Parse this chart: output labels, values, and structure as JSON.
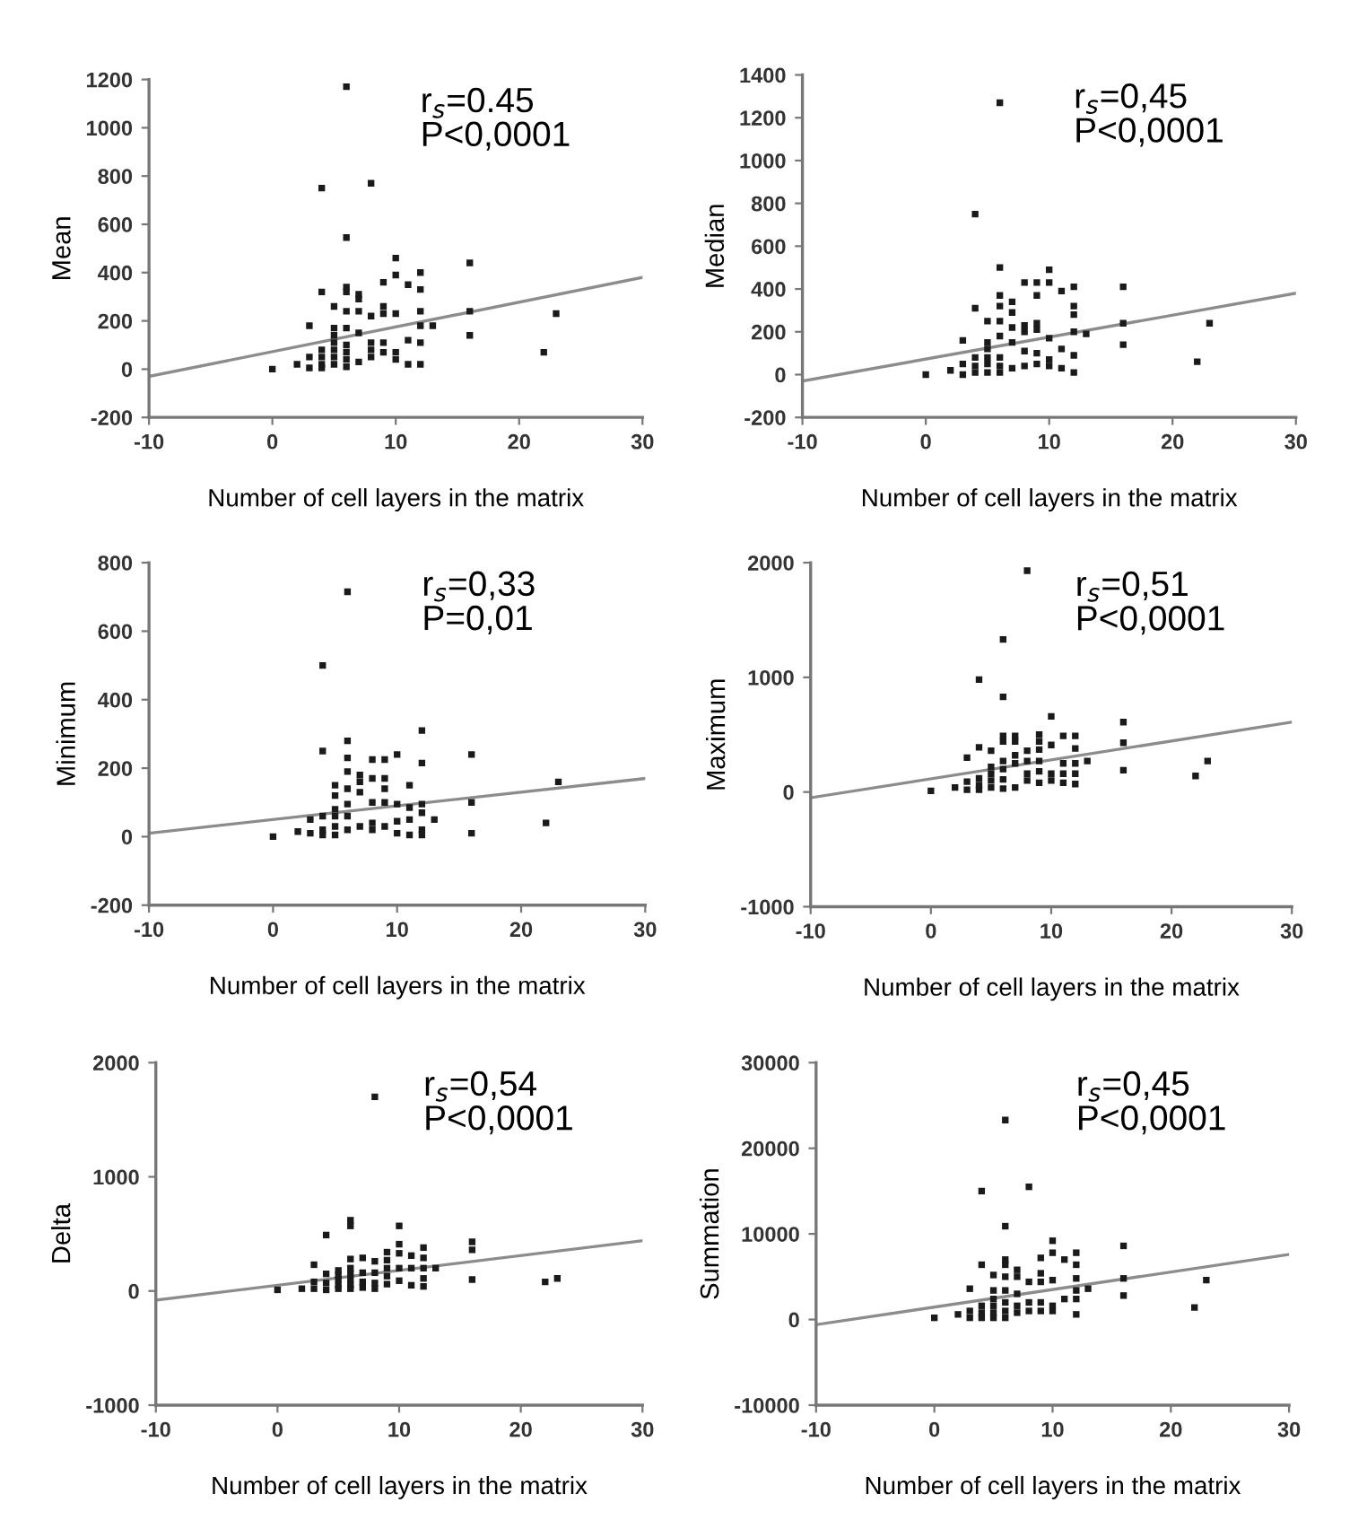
{
  "chart_data": [
    {
      "type": "scatter",
      "xlabel": "Number of cell layers in the matrix",
      "ylabel": "Mean",
      "xlim": [
        -10,
        30
      ],
      "xticks": [
        -10,
        0,
        10,
        20,
        30
      ],
      "ylim": [
        -200,
        1200
      ],
      "yticks": [
        -200,
        0,
        200,
        400,
        600,
        800,
        1000,
        1200
      ],
      "annotations": [
        "r$_{s}$=0.45",
        "P<0,0001"
      ],
      "series": [
        {
          "marker": "square",
          "color": "#1a1a1a",
          "x": [
            0,
            2,
            3,
            3,
            3,
            4,
            4,
            4,
            4,
            4,
            4,
            5,
            5,
            5,
            5,
            5,
            5,
            5,
            6,
            6,
            6,
            6,
            6,
            6,
            6,
            6,
            6,
            6,
            7,
            7,
            7,
            7,
            7,
            8,
            8,
            8,
            8,
            8,
            9,
            9,
            9,
            9,
            9,
            10,
            10,
            10,
            10,
            10,
            11,
            11,
            11,
            12,
            12,
            12,
            12,
            12,
            12,
            13,
            16,
            16,
            16,
            22,
            23
          ],
          "values": [
            0,
            20,
            180,
            50,
            5,
            750,
            320,
            80,
            50,
            20,
            5,
            260,
            170,
            140,
            110,
            80,
            50,
            20,
            1170,
            545,
            340,
            320,
            240,
            170,
            100,
            70,
            40,
            10,
            310,
            290,
            240,
            150,
            30,
            770,
            220,
            110,
            80,
            50,
            360,
            260,
            230,
            110,
            70,
            460,
            390,
            230,
            70,
            40,
            350,
            120,
            20,
            400,
            330,
            240,
            180,
            110,
            20,
            180,
            440,
            240,
            140,
            70,
            230
          ]
        },
        {
          "type": "line",
          "color": "#8c8c8c",
          "x": [
            -10,
            30
          ],
          "values": [
            -30,
            380
          ]
        }
      ]
    },
    {
      "type": "scatter",
      "xlabel": "Number of cell layers in the matrix",
      "ylabel": "Median",
      "xlim": [
        -10,
        30
      ],
      "xticks": [
        -10,
        0,
        10,
        20,
        30
      ],
      "ylim": [
        -200,
        1400
      ],
      "yticks": [
        -200,
        0,
        200,
        400,
        600,
        800,
        1000,
        1200,
        1400
      ],
      "annotations": [
        "r$_{s}$=0,45",
        "P<0,0001"
      ],
      "series": [
        {
          "marker": "square",
          "color": "#1a1a1a",
          "x": [
            0,
            2,
            3,
            3,
            3,
            4,
            4,
            4,
            4,
            4,
            5,
            5,
            5,
            5,
            5,
            5,
            6,
            6,
            6,
            6,
            6,
            6,
            6,
            6,
            6,
            7,
            7,
            7,
            7,
            7,
            8,
            8,
            8,
            8,
            8,
            9,
            9,
            9,
            9,
            9,
            9,
            10,
            10,
            10,
            10,
            10,
            11,
            11,
            11,
            12,
            12,
            12,
            12,
            12,
            12,
            13,
            16,
            16,
            16,
            22,
            23
          ],
          "values": [
            0,
            20,
            160,
            50,
            0,
            750,
            310,
            80,
            40,
            10,
            250,
            150,
            120,
            80,
            50,
            10,
            1270,
            500,
            370,
            320,
            250,
            180,
            80,
            40,
            10,
            340,
            290,
            220,
            150,
            30,
            430,
            230,
            200,
            110,
            40,
            430,
            370,
            240,
            210,
            100,
            50,
            490,
            430,
            170,
            70,
            40,
            390,
            120,
            30,
            410,
            320,
            280,
            200,
            90,
            10,
            190,
            410,
            240,
            140,
            60,
            240
          ]
        },
        {
          "type": "line",
          "color": "#8c8c8c",
          "x": [
            -10,
            30
          ],
          "values": [
            -30,
            380
          ]
        }
      ]
    },
    {
      "type": "scatter",
      "xlabel": "Number of cell layers in the matrix",
      "ylabel": "Minimum",
      "xlim": [
        -10,
        30
      ],
      "xticks": [
        -10,
        0,
        10,
        20,
        30
      ],
      "ylim": [
        -200,
        800
      ],
      "yticks": [
        -200,
        0,
        200,
        400,
        600,
        800
      ],
      "annotations": [
        "r$_{s}$=0,33",
        "P=0,01"
      ],
      "series": [
        {
          "marker": "square",
          "color": "#1a1a1a",
          "x": [
            0,
            2,
            3,
            3,
            4,
            4,
            4,
            4,
            4,
            5,
            5,
            5,
            5,
            5,
            5,
            6,
            6,
            6,
            6,
            6,
            6,
            6,
            6,
            7,
            7,
            7,
            7,
            8,
            8,
            8,
            8,
            8,
            9,
            9,
            9,
            9,
            9,
            10,
            10,
            10,
            10,
            11,
            11,
            11,
            11,
            12,
            12,
            12,
            12,
            12,
            12,
            13,
            16,
            16,
            16,
            22,
            23
          ],
          "values": [
            0,
            15,
            50,
            10,
            500,
            250,
            60,
            20,
            5,
            150,
            120,
            80,
            60,
            30,
            5,
            715,
            280,
            230,
            190,
            140,
            95,
            60,
            20,
            180,
            160,
            130,
            30,
            225,
            170,
            100,
            40,
            20,
            225,
            170,
            140,
            100,
            30,
            240,
            95,
            45,
            10,
            150,
            85,
            50,
            5,
            310,
            215,
            95,
            70,
            20,
            5,
            50,
            240,
            100,
            10,
            40,
            160
          ]
        },
        {
          "type": "line",
          "color": "#8c8c8c",
          "x": [
            -10,
            30
          ],
          "values": [
            10,
            170
          ]
        }
      ]
    },
    {
      "type": "scatter",
      "xlabel": "Number of cell layers in the matrix",
      "ylabel": "Maximum",
      "xlim": [
        -10,
        30
      ],
      "xticks": [
        -10,
        0,
        10,
        20,
        30
      ],
      "ylim": [
        -1000,
        2000
      ],
      "yticks": [
        -1000,
        0,
        1000,
        2000
      ],
      "annotations": [
        "r$_{s}$=0,51",
        "P<0,0001"
      ],
      "series": [
        {
          "marker": "square",
          "color": "#1a1a1a",
          "x": [
            0,
            2,
            3,
            3,
            3,
            4,
            4,
            4,
            4,
            4,
            5,
            5,
            5,
            5,
            5,
            6,
            6,
            6,
            6,
            6,
            6,
            6,
            6,
            7,
            7,
            7,
            7,
            7,
            8,
            8,
            8,
            8,
            8,
            9,
            9,
            9,
            9,
            9,
            9,
            10,
            10,
            10,
            10,
            11,
            11,
            11,
            11,
            12,
            12,
            12,
            12,
            12,
            13,
            16,
            16,
            16,
            22,
            23
          ],
          "values": [
            10,
            40,
            300,
            90,
            20,
            980,
            390,
            120,
            60,
            20,
            360,
            220,
            160,
            100,
            40,
            1330,
            830,
            490,
            440,
            270,
            200,
            110,
            30,
            490,
            440,
            320,
            250,
            40,
            1930,
            360,
            270,
            160,
            100,
            500,
            440,
            370,
            270,
            180,
            80,
            660,
            410,
            160,
            100,
            490,
            250,
            160,
            80,
            490,
            380,
            250,
            160,
            70,
            270,
            610,
            430,
            190,
            140,
            270
          ]
        },
        {
          "type": "line",
          "color": "#8c8c8c",
          "x": [
            -10,
            30
          ],
          "values": [
            -50,
            610
          ]
        }
      ]
    },
    {
      "type": "scatter",
      "xlabel": "Number of cell layers in the matrix",
      "ylabel": "Delta",
      "xlim": [
        -10,
        30
      ],
      "xticks": [
        -10,
        0,
        10,
        20,
        30
      ],
      "ylim": [
        -1000,
        2000
      ],
      "yticks": [
        -1000,
        0,
        1000,
        2000
      ],
      "annotations": [
        "r$_{s}$=0,54",
        "P<0,0001"
      ],
      "series": [
        {
          "marker": "square",
          "color": "#1a1a1a",
          "x": [
            0,
            2,
            3,
            3,
            3,
            4,
            4,
            4,
            4,
            5,
            5,
            5,
            5,
            5,
            6,
            6,
            6,
            6,
            6,
            6,
            6,
            6,
            7,
            7,
            7,
            7,
            8,
            8,
            8,
            8,
            8,
            9,
            9,
            9,
            9,
            9,
            10,
            10,
            10,
            10,
            10,
            11,
            11,
            11,
            12,
            12,
            12,
            12,
            12,
            13,
            16,
            16,
            16,
            22,
            23
          ],
          "values": [
            10,
            20,
            230,
            80,
            20,
            490,
            150,
            70,
            10,
            180,
            140,
            100,
            50,
            20,
            620,
            570,
            280,
            200,
            150,
            100,
            50,
            20,
            290,
            160,
            80,
            30,
            1700,
            260,
            160,
            70,
            20,
            340,
            270,
            200,
            130,
            60,
            570,
            410,
            330,
            200,
            90,
            310,
            200,
            50,
            380,
            290,
            200,
            110,
            40,
            200,
            430,
            360,
            100,
            80,
            110
          ]
        },
        {
          "type": "line",
          "color": "#8c8c8c",
          "x": [
            -10,
            30
          ],
          "values": [
            -80,
            440
          ]
        }
      ]
    },
    {
      "type": "scatter",
      "xlabel": "Number of cell layers in the matrix",
      "ylabel": "Summation",
      "xlim": [
        -10,
        30
      ],
      "xticks": [
        -10,
        0,
        10,
        20,
        30
      ],
      "ylim": [
        -10000,
        30000
      ],
      "yticks": [
        -10000,
        0,
        10000,
        20000,
        30000
      ],
      "annotations": [
        "r$_{s}$=0,45",
        "P<0,0001"
      ],
      "series": [
        {
          "marker": "square",
          "color": "#1a1a1a",
          "x": [
            0,
            2,
            3,
            3,
            3,
            4,
            4,
            4,
            4,
            4,
            5,
            5,
            5,
            5,
            5,
            5,
            6,
            6,
            6,
            6,
            6,
            6,
            6,
            6,
            6,
            7,
            7,
            7,
            7,
            7,
            8,
            8,
            8,
            8,
            9,
            9,
            9,
            9,
            9,
            10,
            10,
            10,
            10,
            10,
            11,
            11,
            12,
            12,
            12,
            12,
            12,
            12,
            13,
            16,
            16,
            16,
            22,
            23
          ],
          "values": [
            200,
            600,
            3600,
            1000,
            200,
            15000,
            6400,
            1600,
            800,
            200,
            5200,
            3400,
            2400,
            1600,
            800,
            200,
            23300,
            10900,
            7000,
            6400,
            5000,
            3400,
            2000,
            1000,
            200,
            5800,
            5000,
            3000,
            1600,
            800,
            15500,
            4400,
            2000,
            1000,
            7200,
            5400,
            4400,
            2000,
            1000,
            9200,
            7800,
            4600,
            1600,
            1000,
            7000,
            2400,
            7800,
            6400,
            4800,
            3400,
            2400,
            600,
            3600,
            8600,
            4800,
            2800,
            1400,
            4600
          ]
        },
        {
          "type": "line",
          "color": "#8c8c8c",
          "x": [
            -10,
            30
          ],
          "values": [
            -600,
            7600
          ]
        }
      ]
    }
  ]
}
